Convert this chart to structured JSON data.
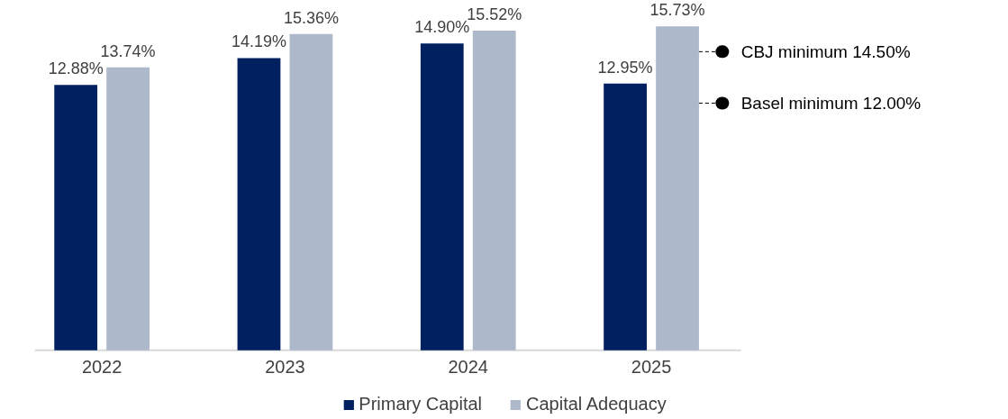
{
  "chart_data": {
    "type": "bar",
    "categories": [
      "2022",
      "2023",
      "2024",
      "2025"
    ],
    "series": [
      {
        "name": "Primary Capital",
        "color": "#002060",
        "values": [
          12.88,
          14.19,
          14.9,
          12.95
        ],
        "value_labels": [
          "12.88%",
          "14.19%",
          "14.90%",
          "12.95%"
        ]
      },
      {
        "name": "Capital Adequacy",
        "color": "#adb9ca",
        "values": [
          13.74,
          15.36,
          15.52,
          15.73
        ],
        "value_labels": [
          "13.74%",
          "15.36%",
          "15.52%",
          "15.73%"
        ]
      }
    ],
    "ref_lines": [
      {
        "axis": "y",
        "value": 14.5,
        "label": "CBJ minimum 14.50%",
        "color": "#000000",
        "line_style": "dashed"
      },
      {
        "axis": "y",
        "value": 12.0,
        "label": "Basel minimum 12.00%",
        "color": "#000000",
        "line_style": "dashed"
      }
    ],
    "grid": false,
    "legend": "bottom",
    "tick_labels": "x"
  }
}
